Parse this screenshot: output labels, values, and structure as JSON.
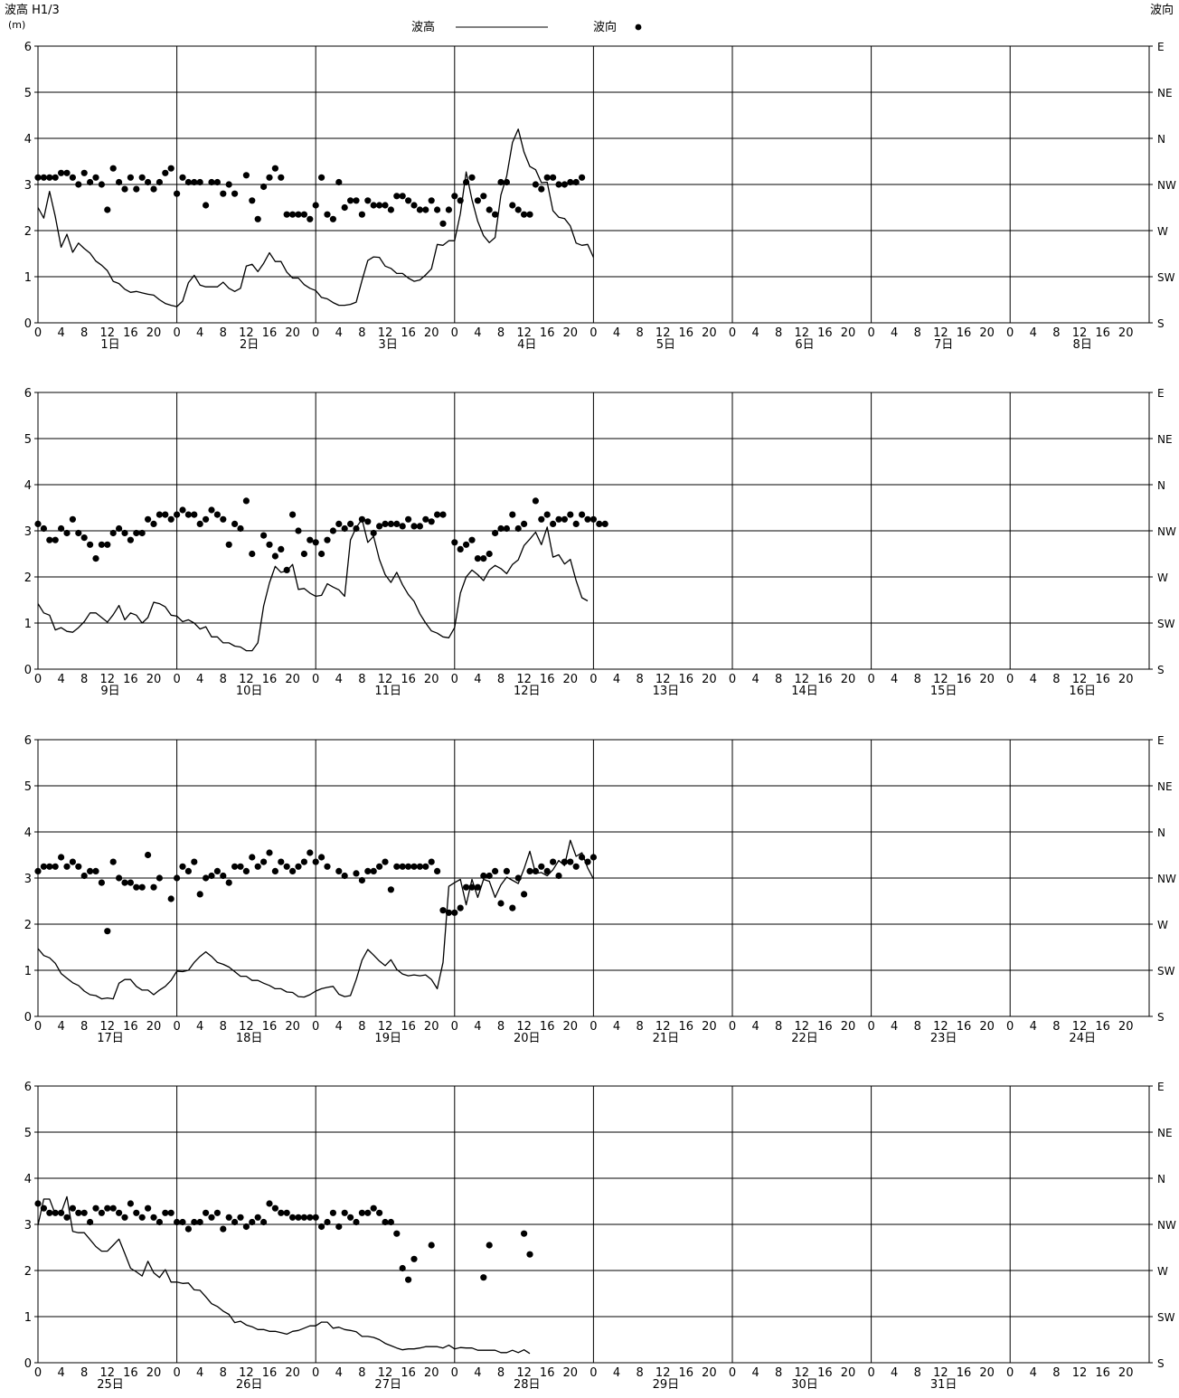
{
  "chart_data": {
    "type": "line",
    "header": {
      "left_axis_title": "波高 H1/3",
      "left_axis_unit": "(m)",
      "right_axis_title": "波向",
      "legend": [
        {
          "label": "波高",
          "marker": "line"
        },
        {
          "label": "波向",
          "marker": "dot"
        }
      ]
    },
    "y_left": {
      "min": 0,
      "max": 6,
      "ticks": [
        "0",
        "1",
        "2",
        "3",
        "4",
        "5",
        "6"
      ]
    },
    "y_right": {
      "ticks": [
        "S",
        "SW",
        "W",
        "NW",
        "N",
        "NE",
        "E"
      ]
    },
    "x_hour_ticks": [
      "0",
      "4",
      "8",
      "12",
      "16",
      "20"
    ],
    "grid": true,
    "panels": [
      {
        "days": [
          "1日",
          "2日",
          "3日",
          "4日",
          "5日",
          "6日",
          "7日",
          "8日"
        ],
        "wave_height": [
          2.5,
          2.27,
          2.85,
          2.3,
          1.64,
          1.92,
          1.53,
          1.73,
          1.61,
          1.51,
          1.34,
          1.25,
          1.13,
          0.9,
          0.85,
          0.73,
          0.66,
          0.68,
          0.65,
          0.62,
          0.6,
          0.5,
          0.42,
          0.38,
          0.35,
          0.47,
          0.87,
          1.03,
          0.82,
          0.78,
          0.78,
          0.78,
          0.88,
          0.75,
          0.68,
          0.75,
          1.23,
          1.27,
          1.11,
          1.29,
          1.52,
          1.33,
          1.33,
          1.1,
          0.97,
          0.97,
          0.83,
          0.75,
          0.7,
          0.55,
          0.52,
          0.44,
          0.38,
          0.38,
          0.4,
          0.45,
          0.92,
          1.35,
          1.43,
          1.42,
          1.23,
          1.18,
          1.07,
          1.07,
          0.97,
          0.9,
          0.93,
          1.04,
          1.17,
          1.7,
          1.68,
          1.78,
          1.78,
          2.37,
          3.27,
          2.67,
          2.2,
          1.89,
          1.74,
          1.85,
          2.77,
          3.18,
          3.91,
          4.2,
          3.7,
          3.39,
          3.32,
          3.04,
          3.05,
          2.43,
          2.29,
          2.26,
          2.1,
          1.73,
          1.68,
          1.7,
          1.42
        ],
        "wave_dir": [
          3.15,
          3.15,
          3.15,
          3.15,
          3.25,
          3.25,
          3.15,
          3.0,
          3.25,
          3.05,
          3.15,
          3.0,
          2.45,
          3.35,
          3.05,
          2.9,
          3.15,
          2.9,
          3.15,
          3.05,
          2.9,
          3.05,
          3.25,
          3.35,
          2.8,
          3.15,
          3.05,
          3.05,
          3.05,
          2.55,
          3.05,
          3.05,
          2.8,
          3.0,
          2.8,
          null,
          3.2,
          2.65,
          2.25,
          2.95,
          3.15,
          3.35,
          3.15,
          2.35,
          2.35,
          2.35,
          2.35,
          2.25,
          2.55,
          3.15,
          2.35,
          2.25,
          3.05,
          2.5,
          2.65,
          2.65,
          2.35,
          2.65,
          2.55,
          2.55,
          2.55,
          2.45,
          2.75,
          2.75,
          2.65,
          2.55,
          2.45,
          2.45,
          2.65,
          2.45,
          2.15,
          2.45,
          2.75,
          2.65,
          3.05,
          3.15,
          2.65,
          2.75,
          2.45,
          2.35,
          3.05,
          3.05,
          2.55,
          2.45,
          2.35,
          2.35,
          3.0,
          2.9,
          3.15,
          3.15,
          3.0,
          3.0,
          3.05,
          3.05,
          3.15
        ]
      },
      {
        "days": [
          "9日",
          "10日",
          "11日",
          "12日",
          "13日",
          "14日",
          "15日",
          "16日"
        ],
        "wave_height": [
          1.42,
          1.22,
          1.17,
          0.85,
          0.9,
          0.82,
          0.8,
          0.9,
          1.03,
          1.22,
          1.22,
          1.12,
          1.02,
          1.18,
          1.38,
          1.07,
          1.22,
          1.17,
          1.0,
          1.12,
          1.45,
          1.42,
          1.35,
          1.17,
          1.15,
          1.03,
          1.07,
          1.0,
          0.87,
          0.92,
          0.7,
          0.7,
          0.57,
          0.57,
          0.5,
          0.48,
          0.4,
          0.4,
          0.57,
          1.37,
          1.87,
          2.23,
          2.1,
          2.13,
          2.27,
          1.73,
          1.75,
          1.65,
          1.58,
          1.6,
          1.85,
          1.78,
          1.72,
          1.58,
          2.8,
          3.07,
          3.25,
          2.75,
          2.88,
          2.38,
          2.05,
          1.88,
          2.1,
          1.83,
          1.62,
          1.47,
          1.2,
          1.0,
          0.83,
          0.78,
          0.7,
          0.68,
          0.9,
          1.65,
          2.0,
          2.15,
          2.05,
          1.92,
          2.15,
          2.25,
          2.18,
          2.07,
          2.27,
          2.37,
          2.68,
          2.82,
          2.97,
          2.7,
          3.08,
          2.43,
          2.48,
          2.28,
          2.38,
          1.92,
          1.55,
          1.48
        ],
        "wave_dir": [
          3.15,
          3.05,
          2.8,
          2.8,
          3.05,
          2.95,
          3.25,
          2.95,
          2.85,
          2.7,
          2.4,
          2.7,
          2.7,
          2.95,
          3.05,
          2.95,
          2.8,
          2.95,
          2.95,
          3.25,
          3.15,
          3.35,
          3.35,
          3.25,
          3.35,
          3.45,
          3.35,
          3.35,
          3.15,
          3.25,
          3.45,
          3.35,
          3.25,
          2.7,
          3.15,
          3.05,
          3.65,
          2.5,
          null,
          2.9,
          2.7,
          2.45,
          2.6,
          2.15,
          3.35,
          3.0,
          2.5,
          2.8,
          2.75,
          2.5,
          2.8,
          3.0,
          3.15,
          3.05,
          3.15,
          3.05,
          3.25,
          3.2,
          2.95,
          3.1,
          3.15,
          3.15,
          3.15,
          3.1,
          3.25,
          3.1,
          3.1,
          3.25,
          3.2,
          3.35,
          3.35,
          null,
          2.75,
          2.6,
          2.7,
          2.8,
          2.4,
          2.4,
          2.5,
          2.95,
          3.05,
          3.05,
          3.35,
          3.05,
          3.15,
          null,
          3.65,
          3.25,
          3.35,
          3.15,
          3.25,
          3.25,
          3.35,
          3.15,
          3.35,
          3.25,
          3.25,
          3.15,
          3.15
        ]
      },
      {
        "days": [
          "17日",
          "18日",
          "19日",
          "20日",
          "21日",
          "22日",
          "23日",
          "24日"
        ],
        "wave_height": [
          1.47,
          1.32,
          1.27,
          1.15,
          0.93,
          0.83,
          0.73,
          0.67,
          0.55,
          0.47,
          0.45,
          0.38,
          0.4,
          0.38,
          0.72,
          0.8,
          0.8,
          0.65,
          0.57,
          0.57,
          0.47,
          0.57,
          0.65,
          0.78,
          0.98,
          0.97,
          1.0,
          1.17,
          1.3,
          1.4,
          1.3,
          1.17,
          1.13,
          1.07,
          0.97,
          0.87,
          0.87,
          0.78,
          0.78,
          0.72,
          0.67,
          0.6,
          0.6,
          0.53,
          0.52,
          0.43,
          0.42,
          0.47,
          0.55,
          0.6,
          0.63,
          0.65,
          0.48,
          0.43,
          0.45,
          0.8,
          1.22,
          1.45,
          1.33,
          1.2,
          1.1,
          1.23,
          1.02,
          0.92,
          0.88,
          0.9,
          0.88,
          0.9,
          0.8,
          0.6,
          1.17,
          2.82,
          2.9,
          2.97,
          2.42,
          2.97,
          2.58,
          2.97,
          2.93,
          2.58,
          2.85,
          3.02,
          2.95,
          2.88,
          3.2,
          3.58,
          3.1,
          3.12,
          3.05,
          3.18,
          3.38,
          3.27,
          3.82,
          3.47,
          3.55,
          3.22,
          2.98
        ],
        "wave_dir": [
          3.15,
          3.25,
          3.25,
          3.25,
          3.45,
          3.25,
          3.35,
          3.25,
          3.05,
          3.15,
          3.15,
          2.9,
          1.85,
          3.35,
          3.0,
          2.9,
          2.9,
          2.8,
          2.8,
          3.5,
          2.8,
          3.0,
          null,
          2.55,
          3.0,
          3.25,
          3.15,
          3.35,
          2.65,
          3.0,
          3.05,
          3.15,
          3.05,
          2.9,
          3.25,
          3.25,
          3.15,
          3.45,
          3.25,
          3.35,
          3.55,
          3.15,
          3.35,
          3.25,
          3.15,
          3.25,
          3.35,
          3.55,
          3.35,
          3.45,
          3.25,
          null,
          3.15,
          3.05,
          null,
          3.1,
          2.95,
          3.15,
          3.15,
          3.25,
          3.35,
          2.75,
          3.25,
          3.25,
          3.25,
          3.25,
          3.25,
          3.25,
          3.35,
          3.15,
          2.3,
          2.25,
          2.25,
          2.35,
          2.8,
          2.8,
          2.8,
          3.05,
          3.05,
          3.15,
          2.45,
          3.15,
          2.35,
          3.0,
          2.65,
          3.15,
          3.15,
          3.25,
          3.15,
          3.35,
          3.05,
          3.35,
          3.35,
          3.25,
          3.45,
          3.35,
          3.45
        ]
      },
      {
        "days": [
          "25日",
          "26日",
          "27日",
          "28日",
          "29日",
          "30日",
          "31日"
        ],
        "wave_height": [
          2.98,
          3.55,
          3.55,
          3.22,
          3.25,
          3.6,
          2.85,
          2.82,
          2.82,
          2.67,
          2.52,
          2.42,
          2.42,
          2.55,
          2.68,
          2.37,
          2.05,
          1.97,
          1.88,
          2.2,
          1.95,
          1.85,
          2.02,
          1.75,
          1.75,
          1.72,
          1.73,
          1.58,
          1.57,
          1.43,
          1.28,
          1.22,
          1.12,
          1.05,
          0.87,
          0.9,
          0.82,
          0.78,
          0.72,
          0.72,
          0.68,
          0.68,
          0.65,
          0.62,
          0.68,
          0.7,
          0.75,
          0.8,
          0.8,
          0.88,
          0.88,
          0.75,
          0.77,
          0.72,
          0.7,
          0.67,
          0.57,
          0.57,
          0.55,
          0.5,
          0.42,
          0.37,
          0.32,
          0.28,
          0.3,
          0.3,
          0.32,
          0.35,
          0.35,
          0.35,
          0.32,
          0.38,
          0.3,
          0.33,
          0.32,
          0.32,
          0.27,
          0.27,
          0.27,
          0.27,
          0.22,
          0.22,
          0.27,
          0.22,
          0.28,
          0.2
        ],
        "wave_dir": [
          3.45,
          3.35,
          3.25,
          3.25,
          3.25,
          3.15,
          3.35,
          3.25,
          3.25,
          3.05,
          3.35,
          3.25,
          3.35,
          3.35,
          3.25,
          3.15,
          3.45,
          3.25,
          3.15,
          3.35,
          3.15,
          3.05,
          3.25,
          3.25,
          3.05,
          3.05,
          2.9,
          3.05,
          3.05,
          3.25,
          3.15,
          3.25,
          2.9,
          3.15,
          3.05,
          3.15,
          2.95,
          3.05,
          3.15,
          3.05,
          3.45,
          3.35,
          3.25,
          3.25,
          3.15,
          3.15,
          3.15,
          3.15,
          3.15,
          2.95,
          3.05,
          3.25,
          2.95,
          3.25,
          3.15,
          3.05,
          3.25,
          3.25,
          3.35,
          3.25,
          3.05,
          3.05,
          2.8,
          2.05,
          1.8,
          2.25,
          null,
          null,
          2.55,
          null,
          null,
          null,
          null,
          null,
          null,
          null,
          null,
          1.85,
          2.55,
          null,
          null,
          null,
          null,
          null,
          2.8,
          2.35
        ]
      }
    ]
  }
}
